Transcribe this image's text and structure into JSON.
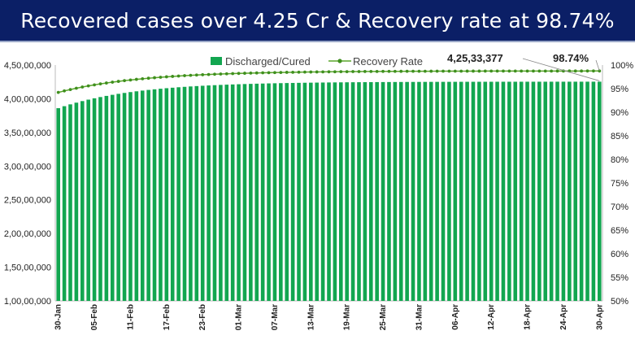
{
  "title": "Recovered cases over 4.25 Cr & Recovery rate at 98.74%",
  "colors": {
    "banner": "#0b1f66",
    "bars": "#12a650",
    "line": "#5aa52a",
    "marker": "#3f8f1e"
  },
  "chart_data": {
    "type": "bar",
    "legend": [
      "Discharged/Cured",
      "Recovery Rate"
    ],
    "legend_position": "top-center",
    "series": [
      {
        "name": "Discharged/Cured",
        "type": "bar",
        "axis": "left",
        "start": 38600000,
        "end": 42533377,
        "values_note_shown": "4,25,33,377"
      },
      {
        "name": "Recovery Rate",
        "type": "line",
        "axis": "right",
        "start": 94.2,
        "end": 98.74
      }
    ],
    "x_tick_labels": [
      "30-Jan",
      "05-Feb",
      "11-Feb",
      "17-Feb",
      "23-Feb",
      "01-Mar",
      "07-Mar",
      "13-Mar",
      "19-Mar",
      "25-Mar",
      "31-Mar",
      "06-Apr",
      "12-Apr",
      "18-Apr",
      "24-Apr",
      "30-Apr"
    ],
    "y_left": {
      "ylim": [
        10000000,
        45000000
      ],
      "tick_labels": [
        "1,00,00,000",
        "1,50,00,000",
        "2,00,00,000",
        "2,50,00,000",
        "3,00,00,000",
        "3,50,00,000",
        "4,00,00,000",
        "4,50,00,000"
      ]
    },
    "y_right": {
      "ylim": [
        50,
        100
      ],
      "tick_labels": [
        "50%",
        "55%",
        "60%",
        "65%",
        "70%",
        "75%",
        "80%",
        "85%",
        "90%",
        "95%",
        "100%"
      ]
    },
    "annotations": {
      "last_cured": "4,25,33,377",
      "last_rate": "98.74%"
    },
    "grid": false
  }
}
